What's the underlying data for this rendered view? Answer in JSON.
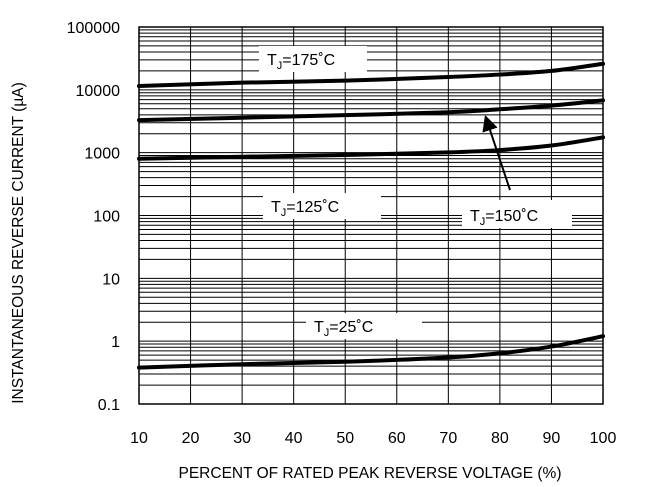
{
  "chart_data": {
    "type": "line",
    "xlabel": "PERCENT OF RATED PEAK REVERSE VOLTAGE (%)",
    "ylabel": "INSTANTANEOUS REVERSE CURRENT (µA)",
    "xlim": [
      10,
      100
    ],
    "ylim": [
      0.1,
      100000
    ],
    "y_scale": "log",
    "grid": true,
    "x_ticks": [
      10,
      20,
      30,
      40,
      50,
      60,
      70,
      80,
      90,
      100
    ],
    "x_tick_labels": [
      "10",
      "20",
      "30",
      "40",
      "50",
      "60",
      "70",
      "80",
      "90",
      "100"
    ],
    "y_ticks": [
      0.1,
      1,
      10,
      100,
      1000,
      10000,
      100000
    ],
    "y_tick_labels": [
      "0.1",
      "1",
      "10",
      "100",
      "1000",
      "10000",
      "100000"
    ],
    "series": [
      {
        "label_prefix": "T",
        "label_sub": "J",
        "label_suffix": "=175˚C",
        "x": [
          10,
          30,
          50,
          70,
          80,
          90,
          100
        ],
        "y": [
          11500,
          13000,
          14000,
          16000,
          17500,
          20000,
          26000
        ]
      },
      {
        "label_prefix": "T",
        "label_sub": "J",
        "label_suffix": "=150˚C",
        "x": [
          10,
          30,
          50,
          70,
          80,
          90,
          100
        ],
        "y": [
          3300,
          3600,
          3950,
          4400,
          4900,
          5600,
          6800
        ]
      },
      {
        "label_prefix": "T",
        "label_sub": "J",
        "label_suffix": "=125˚C",
        "x": [
          10,
          30,
          50,
          70,
          80,
          90,
          100
        ],
        "y": [
          800,
          860,
          920,
          1010,
          1100,
          1300,
          1750
        ]
      },
      {
        "label_prefix": "T",
        "label_sub": "J",
        "label_suffix": "=25˚C",
        "x": [
          10,
          30,
          50,
          70,
          80,
          90,
          100
        ],
        "y": [
          0.38,
          0.43,
          0.47,
          0.55,
          0.64,
          0.82,
          1.2
        ]
      }
    ]
  }
}
